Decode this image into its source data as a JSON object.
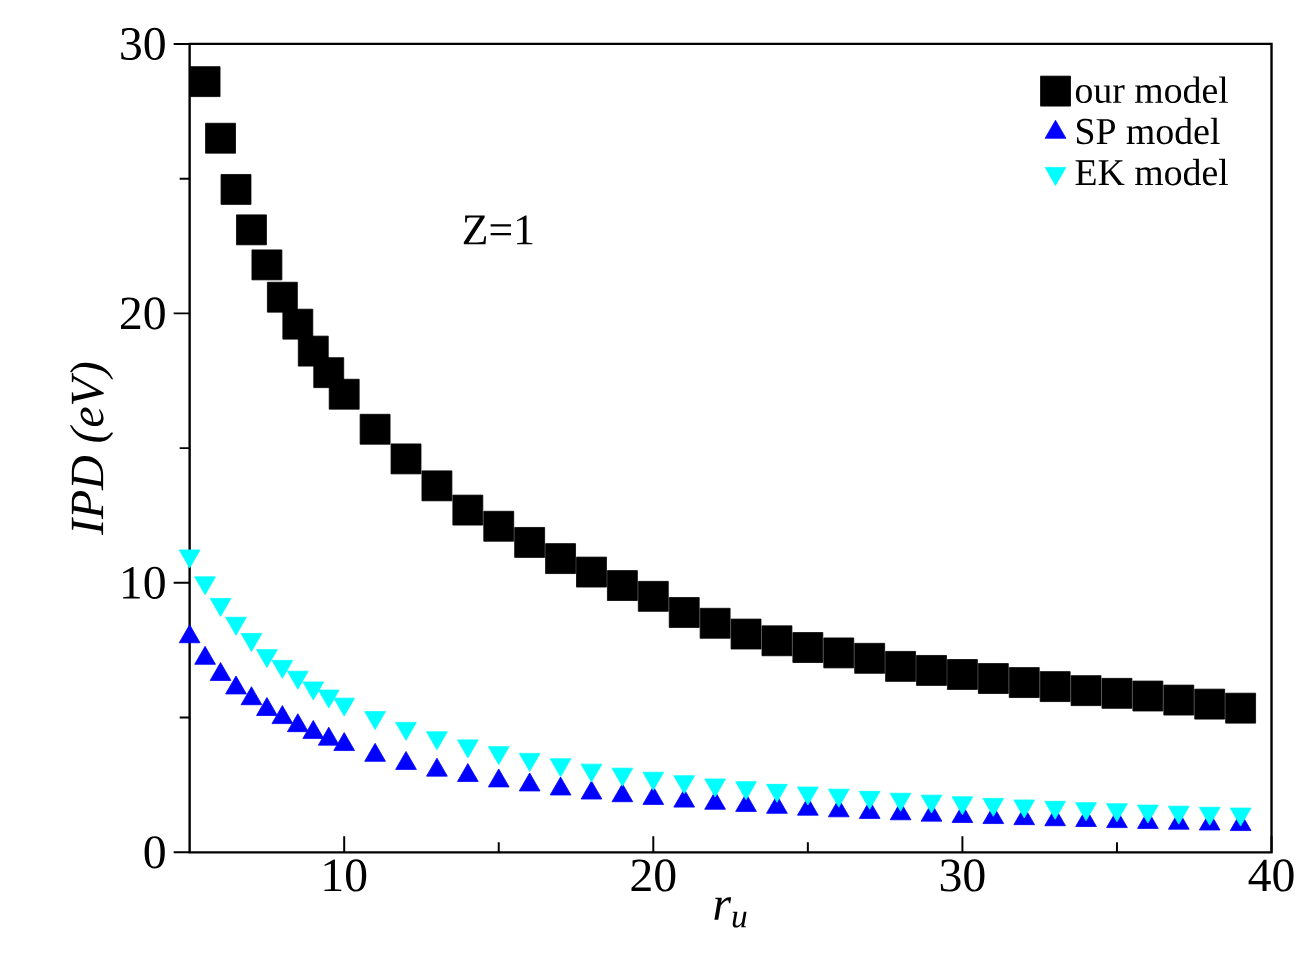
{
  "chart_data": {
    "type": "scatter",
    "xlabel": "r$_{u}$",
    "ylabel": "IPD (eV)",
    "annotations": [
      "Z=1"
    ],
    "xlim": [
      5,
      40
    ],
    "xticks": [
      10,
      20,
      30,
      40
    ],
    "ylim": [
      0,
      30
    ],
    "yticks": [
      0,
      10,
      20,
      30
    ],
    "legend": "top right",
    "grid": false,
    "series": [
      {
        "name": "our model",
        "color": "#000000",
        "marker": "square",
        "x": [
          5.5,
          6,
          6.5,
          7,
          7.5,
          8,
          8.5,
          9,
          9.5,
          10,
          11,
          12,
          13,
          14,
          15,
          16,
          17,
          18,
          19,
          20,
          21,
          22,
          23,
          24,
          25,
          26,
          27,
          28,
          29,
          30,
          31,
          32,
          33,
          34,
          35,
          36,
          37,
          38,
          39
        ],
        "values": [
          28.6,
          26.5,
          24.6,
          23.1,
          21.8,
          20.6,
          19.6,
          18.6,
          17.8,
          17.0,
          15.7,
          14.6,
          13.6,
          12.7,
          12.1,
          11.5,
          10.9,
          10.4,
          9.9,
          9.5,
          8.9,
          8.5,
          8.1,
          7.85,
          7.6,
          7.4,
          7.2,
          6.9,
          6.75,
          6.6,
          6.45,
          6.3,
          6.15,
          6.0,
          5.9,
          5.8,
          5.65,
          5.5,
          5.35
        ]
      },
      {
        "name": "SP model",
        "color": "#0000ff",
        "marker": "triangle",
        "x": [
          5,
          5.5,
          6,
          6.5,
          7,
          7.5,
          8,
          8.5,
          9,
          9.5,
          10,
          11,
          12,
          13,
          14,
          15,
          16,
          17,
          18,
          19,
          20,
          21,
          22,
          23,
          24,
          25,
          26,
          27,
          28,
          29,
          30,
          31,
          32,
          33,
          34,
          35,
          36,
          37,
          38,
          39
        ],
        "values": [
          8.0,
          7.2,
          6.6,
          6.1,
          5.7,
          5.3,
          5.0,
          4.7,
          4.45,
          4.2,
          4.0,
          3.6,
          3.3,
          3.05,
          2.85,
          2.65,
          2.5,
          2.35,
          2.2,
          2.1,
          2.0,
          1.9,
          1.82,
          1.74,
          1.67,
          1.6,
          1.54,
          1.48,
          1.43,
          1.38,
          1.33,
          1.29,
          1.25,
          1.21,
          1.18,
          1.14,
          1.11,
          1.08,
          1.05,
          1.03
        ]
      },
      {
        "name": "EK model",
        "color": "#00ffff",
        "marker": "triangle-down",
        "x": [
          5,
          5.5,
          6,
          6.5,
          7,
          7.5,
          8,
          8.5,
          9,
          9.5,
          10,
          11,
          12,
          13,
          14,
          15,
          16,
          17,
          18,
          19,
          20,
          21,
          22,
          23,
          24,
          25,
          26,
          27,
          28,
          29,
          30,
          31,
          32,
          33,
          34,
          35,
          36,
          37,
          38,
          39
        ],
        "values": [
          11.0,
          10.0,
          9.2,
          8.5,
          7.9,
          7.3,
          6.9,
          6.5,
          6.1,
          5.8,
          5.5,
          5.0,
          4.6,
          4.25,
          3.95,
          3.7,
          3.45,
          3.25,
          3.05,
          2.9,
          2.75,
          2.62,
          2.5,
          2.4,
          2.3,
          2.2,
          2.12,
          2.04,
          1.97,
          1.9,
          1.84,
          1.78,
          1.72,
          1.67,
          1.62,
          1.58,
          1.53,
          1.49,
          1.45,
          1.42
        ]
      }
    ]
  }
}
